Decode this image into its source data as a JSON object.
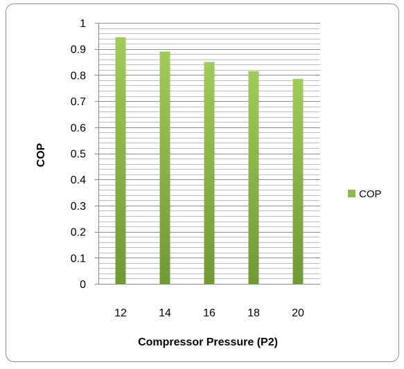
{
  "chart_data": {
    "type": "bar",
    "title": "",
    "xlabel": "Compressor Pressure (P2)",
    "ylabel": "COP",
    "categories": [
      "12",
      "14",
      "16",
      "18",
      "20"
    ],
    "series": [
      {
        "name": "COP",
        "values": [
          0.945,
          0.89,
          0.85,
          0.815,
          0.785
        ],
        "color": "#8db84a"
      }
    ],
    "ylim": [
      0,
      1
    ],
    "ytick_step": 0.1,
    "yticks": [
      "0",
      "0.1",
      "0.2",
      "0.3",
      "0.4",
      "0.5",
      "0.6",
      "0.7",
      "0.8",
      "0.9",
      "1"
    ],
    "grid": true,
    "grid_minor_step": 0.02,
    "legend_position": "right"
  }
}
